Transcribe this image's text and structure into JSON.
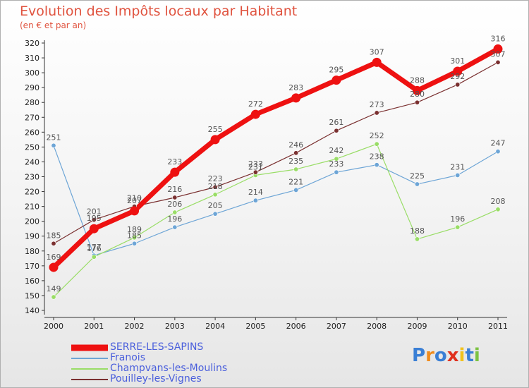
{
  "title": "Evolution des Impôts locaux par Habitant",
  "subtitle": "(en € et par an)",
  "chart_data": {
    "type": "line",
    "title": "Evolution des Impôts locaux par Habitant",
    "subtitle": "(en € et par an)",
    "xlabel": "",
    "ylabel": "",
    "x": [
      "2000",
      "2001",
      "2002",
      "2003",
      "2004",
      "2005",
      "2006",
      "2007",
      "2008",
      "2009",
      "2010",
      "2011"
    ],
    "ylim": [
      140,
      320
    ],
    "ytick_step": 10,
    "grid": false,
    "legend_position": "bottom-left",
    "series": [
      {
        "name": "SERRE-LES-SAPINS",
        "color": "#ee1111",
        "values": [
          169,
          195,
          207,
          233,
          255,
          272,
          283,
          295,
          307,
          288,
          301,
          316
        ]
      },
      {
        "name": "Franois",
        "color": "#6da5d6",
        "values": [
          251,
          177,
          185,
          196,
          205,
          214,
          221,
          233,
          238,
          225,
          231,
          247
        ]
      },
      {
        "name": "Champvans-les-Moulins",
        "color": "#99dd66",
        "values": [
          149,
          176,
          189,
          206,
          218,
          231,
          235,
          242,
          252,
          188,
          196,
          208
        ]
      },
      {
        "name": "Pouilley-les-Vignes",
        "color": "#7a3030",
        "values": [
          185,
          201,
          210,
          216,
          223,
          233,
          246,
          261,
          273,
          280,
          292,
          307
        ]
      }
    ]
  },
  "logo": {
    "letters": [
      "P",
      "r",
      "o",
      "x",
      "i",
      "t",
      "i"
    ],
    "colors": [
      "#3a7fd5",
      "#f08c1e",
      "#3a7fd5",
      "#e0301e",
      "#f2c21b",
      "#3a7fd5",
      "#7cc242"
    ]
  }
}
